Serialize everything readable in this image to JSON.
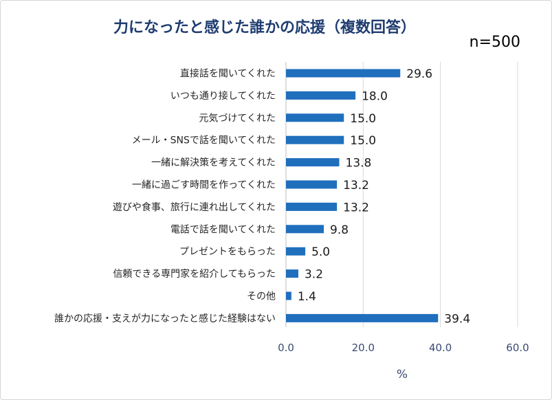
{
  "title": "力になったと感じた誰かの応援（複数回答）",
  "sample_size_label": "n=500",
  "chart_data": {
    "type": "bar",
    "orientation": "horizontal",
    "title": "力になったと感じた誰かの応援（複数回答）",
    "xlabel": "%",
    "ylabel": "",
    "xlim": [
      0,
      60
    ],
    "xticks": [
      0,
      20,
      40,
      60
    ],
    "xtick_labels": [
      "0.0",
      "20.0",
      "40.0",
      "60.0"
    ],
    "grid": true,
    "bar_color": "#1f6fbd",
    "grid_color": "#d9d9d9",
    "categories": [
      "直接話を聞いてくれた",
      "いつも通り接してくれた",
      "元気づけてくれた",
      "メール・SNSで話を聞いてくれた",
      "一緒に解決策を考えてくれた",
      "一緒に過ごす時間を作ってくれた",
      "遊びや食事、旅行に連れ出してくれた",
      "電話で話を聞いてくれた",
      "プレゼントをもらった",
      "信頼できる専門家を紹介してもらった",
      "その他",
      "誰かの応援・支えが力になったと感じた経験はない"
    ],
    "values": [
      29.6,
      18.0,
      15.0,
      15.0,
      13.8,
      13.2,
      13.2,
      9.8,
      5.0,
      3.2,
      1.4,
      39.4
    ],
    "value_labels": [
      "29.6",
      "18.0",
      "15.0",
      "15.0",
      "13.8",
      "13.2",
      "13.2",
      "9.8",
      "5.0",
      "3.2",
      "1.4",
      "39.4"
    ]
  }
}
